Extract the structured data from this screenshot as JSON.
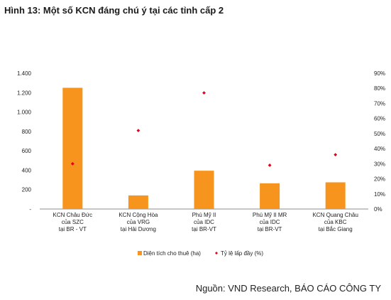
{
  "figure_title": "Hình 13: Một số KCN đáng chú ý tại các tỉnh cấp 2",
  "source": "Nguồn: VND Research, BÁO CÁO CÔNG TY",
  "chart_data": {
    "type": "bar",
    "title": "",
    "categories": [
      [
        "KCN Châu Đức",
        "của SZC",
        "tại BR - VT"
      ],
      [
        "KCN Cộng Hòa",
        "của VRG",
        "tại Hải Dương"
      ],
      [
        "Phú Mỹ II",
        "của IDC",
        "tại BR-VT"
      ],
      [
        "Phú Mỹ II MR",
        "của IDC",
        "tại BR-VT"
      ],
      [
        "KCN Quang Châu",
        "của KBC",
        "tại Bắc Giang"
      ]
    ],
    "series": [
      {
        "name": "Diện tích cho thuê (ha)",
        "type": "bar",
        "axis": "left",
        "color": "#F7941D",
        "values": [
          1250,
          140,
          395,
          265,
          275
        ]
      },
      {
        "name": "Tỷ lệ lấp đầy (%)",
        "type": "scatter",
        "axis": "right",
        "color": "#E2001A",
        "values": [
          30,
          52,
          77,
          29,
          36
        ]
      }
    ],
    "y_left": {
      "ylim": [
        0,
        1400
      ],
      "tick_values": [
        0,
        200,
        400,
        600,
        800,
        1000,
        1200,
        1400
      ],
      "tick_labels": [
        "-",
        "200",
        "400",
        "600",
        "800",
        "1.000",
        "1.200",
        "1.400"
      ]
    },
    "y_right": {
      "ylim": [
        0,
        90
      ],
      "tick_values": [
        0,
        10,
        20,
        30,
        40,
        50,
        60,
        70,
        80,
        90
      ],
      "tick_labels": [
        "0%",
        "10%",
        "20%",
        "30%",
        "40%",
        "50%",
        "60%",
        "70%",
        "80%",
        "90%"
      ]
    },
    "grid": false,
    "legend_position": "bottom-center"
  }
}
